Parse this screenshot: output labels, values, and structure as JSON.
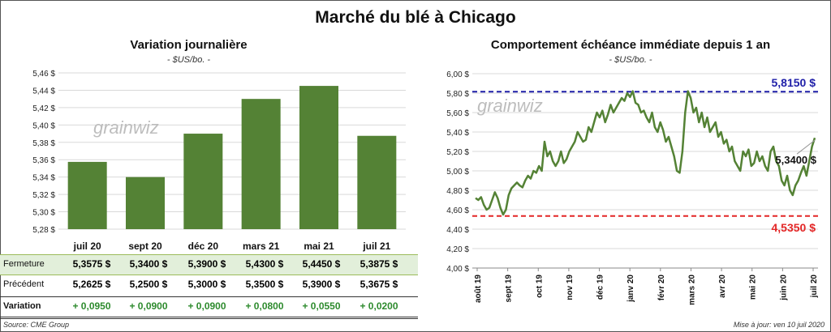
{
  "title": "Marché du blé à Chicago",
  "left": {
    "title": "Variation  journalière",
    "unit": "- $US/bo. -"
  },
  "right": {
    "title": "Comportement  échéance immédiate depuis 1 an",
    "unit": "- $US/bo. -"
  },
  "watermark": "grainwiz",
  "table": {
    "rows": [
      {
        "label": "Fermeture",
        "values": [
          "5,3575  $",
          "5,3400  $",
          "5,3900  $",
          "5,4300  $",
          "5,4450  $",
          "5,3875  $"
        ]
      },
      {
        "label": "Précédent",
        "values": [
          "5,2625  $",
          "5,2500  $",
          "5,3000  $",
          "5,3500  $",
          "5,3900  $",
          "5,3675  $"
        ]
      },
      {
        "label": "Variation",
        "values": [
          "+ 0,0950",
          "+ 0,0900",
          "+ 0,0900",
          "+ 0,0800",
          "+ 0,0550",
          "+ 0,0200"
        ]
      }
    ]
  },
  "source": "Source: CME Group",
  "updated": "Mise à jour: ven 10 juil 2020",
  "colors": {
    "bar": "#548235",
    "line": "#548235",
    "high": "#1F1FA8",
    "low": "#E32626",
    "positive": "#2E8B2E",
    "band": "#E2EFDA"
  },
  "chart_data": [
    {
      "type": "bar",
      "title": "Variation  journalière",
      "ylabel": "- $US/bo. -",
      "categories": [
        "juil 20",
        "sept 20",
        "déc 20",
        "mars 21",
        "mai 21",
        "juil 21"
      ],
      "values": [
        5.3575,
        5.34,
        5.39,
        5.43,
        5.445,
        5.3875
      ],
      "ylim": [
        5.28,
        5.46
      ],
      "yticks": [
        "5,28 $",
        "5,30 $",
        "5,32 $",
        "5,34 $",
        "5,36 $",
        "5,38 $",
        "5,40 $",
        "5,42 $",
        "5,44 $",
        "5,46 $"
      ],
      "grid": true
    },
    {
      "type": "line",
      "title": "Comportement  échéance immédiate depuis 1 an",
      "ylabel": "- $US/bo. -",
      "ylim": [
        4.0,
        6.0
      ],
      "yticks": [
        "4,00 $",
        "4,20 $",
        "4,40 $",
        "4,60 $",
        "4,80 $",
        "5,00 $",
        "5,20 $",
        "5,40 $",
        "5,60 $",
        "5,80 $",
        "6,00 $"
      ],
      "xticks": [
        "août 19",
        "sept 19",
        "oct 19",
        "nov 19",
        "déc 19",
        "janv 20",
        "févr 20",
        "mars 20",
        "avr 20",
        "mai 20",
        "juin 20",
        "juil 20"
      ],
      "series": [
        {
          "values": [
            4.72,
            4.7,
            4.73,
            4.65,
            4.6,
            4.62,
            4.7,
            4.78,
            4.72,
            4.62,
            4.55,
            4.6,
            4.75,
            4.82,
            4.85,
            4.88,
            4.85,
            4.83,
            4.9,
            4.95,
            4.92,
            5.0,
            4.98,
            5.05,
            5.0,
            5.3,
            5.15,
            5.2,
            5.1,
            5.05,
            5.1,
            5.2,
            5.08,
            5.12,
            5.2,
            5.25,
            5.3,
            5.4,
            5.35,
            5.3,
            5.32,
            5.45,
            5.4,
            5.5,
            5.6,
            5.55,
            5.62,
            5.5,
            5.58,
            5.68,
            5.6,
            5.65,
            5.7,
            5.75,
            5.72,
            5.8,
            5.76,
            5.82,
            5.7,
            5.68,
            5.6,
            5.62,
            5.55,
            5.5,
            5.6,
            5.45,
            5.4,
            5.5,
            5.42,
            5.3,
            5.35,
            5.25,
            5.15,
            5.0,
            4.98,
            5.2,
            5.6,
            5.82,
            5.75,
            5.6,
            5.65,
            5.5,
            5.6,
            5.45,
            5.55,
            5.4,
            5.45,
            5.5,
            5.35,
            5.4,
            5.28,
            5.32,
            5.2,
            5.25,
            5.1,
            5.05,
            5.0,
            5.2,
            5.15,
            5.22,
            5.05,
            5.08,
            5.2,
            5.1,
            5.15,
            5.05,
            5.0,
            5.2,
            5.25,
            5.1,
            5.05,
            4.9,
            4.85,
            4.95,
            4.8,
            4.75,
            4.85,
            4.9,
            4.98,
            5.05,
            4.95,
            5.1,
            5.25,
            5.34
          ]
        }
      ],
      "high_value": 5.815,
      "low_value": 4.535,
      "high_label": "5,8150  $",
      "low_label": "4,5350  $",
      "last_label": "5,3400 $"
    }
  ]
}
